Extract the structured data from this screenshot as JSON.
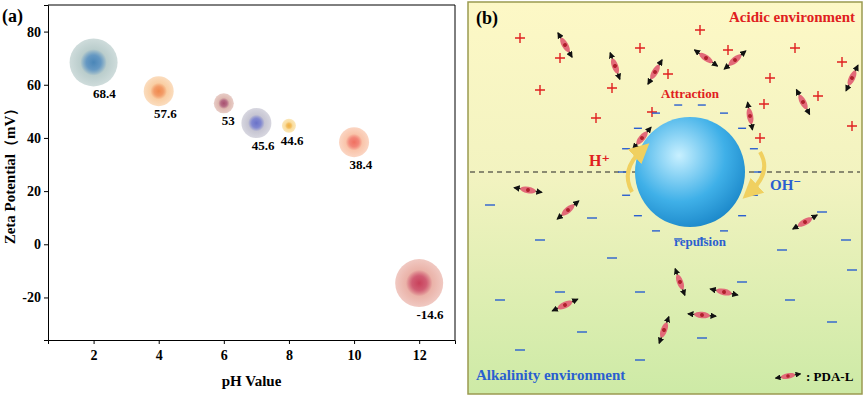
{
  "chart_data": {
    "type": "scatter",
    "title": "(a)",
    "x_label": "pH Value",
    "y_label": "Zeta Potential（mV）",
    "x": [
      2,
      4,
      6,
      7,
      8,
      10,
      12
    ],
    "values": [
      68.4,
      57.6,
      53,
      45.6,
      44.6,
      38.4,
      -14.6
    ],
    "sizes": [
      24,
      15,
      10,
      15,
      7,
      15,
      24
    ],
    "colors": [
      "#4a86b8",
      "#f08a4d",
      "#a8506e",
      "#6a72c8",
      "#f0b040",
      "#f07060",
      "#c8405a"
    ],
    "xlim": [
      0.6,
      13.1
    ],
    "ylim": [
      -36,
      90
    ],
    "xticks": [
      2,
      4,
      6,
      8,
      10,
      12
    ],
    "yticks": [
      -20,
      0,
      20,
      40,
      60,
      80
    ],
    "data_labels": true,
    "marker": "circle"
  },
  "diagram": {
    "label": "(b)",
    "top_label": "Acidic environment",
    "bottom_label": "Alkalinity environment",
    "attraction": "Attraction",
    "repulsion": "repulsion",
    "ion_left": "H⁺",
    "ion_right": "OH⁻",
    "legend_label": ": PDA-L"
  }
}
